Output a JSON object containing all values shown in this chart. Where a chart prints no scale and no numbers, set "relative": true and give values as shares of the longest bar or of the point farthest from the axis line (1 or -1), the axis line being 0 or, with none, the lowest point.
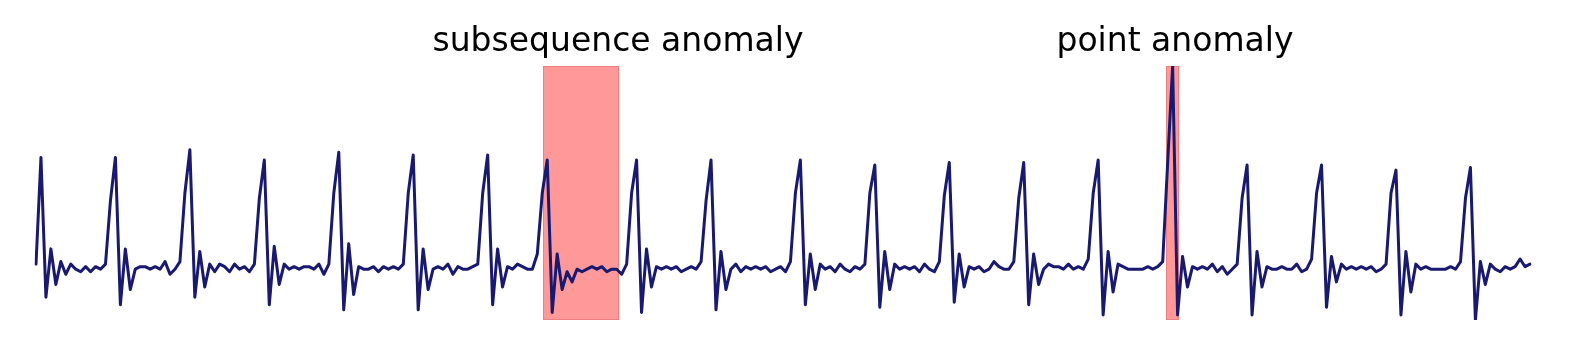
{
  "chart_data": {
    "type": "line",
    "relative": true,
    "legend": false,
    "marker": "none",
    "line_style": "solid",
    "annotations": [
      "subsequence anomaly",
      "point anomaly"
    ],
    "categories": [
      null,
      null,
      null,
      null,
      null,
      null,
      null,
      null,
      null,
      null,
      null,
      null,
      null,
      null,
      null,
      null,
      null,
      null,
      null,
      null,
      null,
      null,
      null,
      null,
      null,
      null,
      null,
      null,
      null,
      null,
      null,
      null,
      null,
      null,
      null,
      null,
      null,
      null,
      null,
      null,
      null,
      null,
      null,
      null,
      null,
      null,
      null,
      null,
      null,
      null,
      null,
      null,
      null,
      null,
      null,
      null,
      null,
      null,
      null,
      null,
      null,
      null,
      null,
      null,
      null,
      null,
      null,
      null,
      null,
      null,
      null,
      null,
      null,
      null,
      null,
      null,
      null,
      null,
      null,
      null,
      null,
      null,
      null,
      null,
      null,
      null,
      null,
      null,
      null,
      null,
      null,
      null,
      null,
      null,
      null,
      null,
      null,
      null,
      null,
      null,
      null,
      null,
      null,
      null,
      null,
      null,
      null,
      null,
      null,
      null,
      null,
      null,
      null,
      null,
      null,
      null,
      null,
      null,
      null,
      null,
      null,
      null,
      null,
      null,
      null,
      null,
      null,
      null,
      null,
      null,
      null,
      null,
      null,
      null,
      null,
      null,
      null,
      null,
      null,
      null,
      null,
      null,
      null,
      null,
      null,
      null,
      null,
      null,
      null,
      null,
      null,
      null,
      null,
      null,
      null,
      null,
      null,
      null,
      null,
      null,
      null,
      null,
      null,
      null,
      null,
      null,
      null,
      null,
      null,
      null,
      null,
      null,
      null,
      null,
      null,
      null,
      null,
      null,
      null,
      null,
      null,
      null,
      null,
      null,
      null,
      null,
      null,
      null,
      null,
      null,
      null,
      null,
      null,
      null,
      null,
      null,
      null,
      null,
      null,
      null,
      null,
      null,
      null,
      null,
      null,
      null,
      null,
      null,
      null,
      null,
      null,
      null,
      null,
      null,
      null,
      null,
      null,
      null,
      null,
      null,
      null,
      null,
      null,
      null,
      null,
      null,
      null,
      null,
      null,
      null,
      null,
      null,
      null,
      null,
      null,
      null,
      null,
      null,
      null,
      null,
      null,
      null,
      null,
      null,
      null,
      null,
      null,
      null,
      null,
      null,
      null,
      null,
      null,
      null,
      null,
      null,
      null,
      null,
      null,
      null,
      null,
      null,
      null,
      null,
      null,
      null,
      null,
      null,
      null,
      null,
      null,
      null,
      null,
      null,
      null,
      null,
      null,
      null,
      null,
      null,
      null,
      null,
      null,
      null,
      null,
      null,
      null,
      null,
      null,
      null,
      null,
      null,
      null,
      null,
      null,
      null,
      null,
      null,
      null,
      null,
      null,
      null
    ],
    "series": [
      {
        "color": "#191970",
        "values": [
          0.22,
          0.64,
          0.09,
          0.28,
          0.14,
          0.23,
          0.18,
          0.22,
          0.2,
          0.19,
          0.21,
          0.19,
          0.21,
          0.2,
          0.22,
          0.47,
          0.64,
          0.06,
          0.28,
          0.12,
          0.2,
          0.21,
          0.21,
          0.2,
          0.21,
          0.2,
          0.23,
          0.18,
          0.2,
          0.23,
          0.5,
          0.67,
          0.09,
          0.27,
          0.13,
          0.22,
          0.19,
          0.22,
          0.21,
          0.19,
          0.22,
          0.2,
          0.21,
          0.19,
          0.22,
          0.48,
          0.63,
          0.06,
          0.29,
          0.14,
          0.22,
          0.2,
          0.21,
          0.2,
          0.21,
          0.21,
          0.2,
          0.22,
          0.18,
          0.22,
          0.5,
          0.66,
          0.04,
          0.3,
          0.1,
          0.21,
          0.2,
          0.2,
          0.21,
          0.19,
          0.21,
          0.2,
          0.21,
          0.2,
          0.22,
          0.5,
          0.65,
          0.04,
          0.28,
          0.12,
          0.2,
          0.21,
          0.2,
          0.22,
          0.18,
          0.21,
          0.2,
          0.2,
          0.21,
          0.22,
          0.5,
          0.65,
          0.06,
          0.28,
          0.13,
          0.21,
          0.2,
          0.22,
          0.21,
          0.2,
          0.2,
          0.26,
          0.5,
          0.63,
          0.03,
          0.26,
          0.12,
          0.19,
          0.15,
          0.2,
          0.19,
          0.2,
          0.21,
          0.2,
          0.21,
          0.19,
          0.2,
          0.2,
          0.18,
          0.22,
          0.5,
          0.63,
          0.03,
          0.28,
          0.13,
          0.21,
          0.2,
          0.21,
          0.2,
          0.21,
          0.19,
          0.2,
          0.21,
          0.2,
          0.23,
          0.47,
          0.63,
          0.04,
          0.27,
          0.12,
          0.2,
          0.22,
          0.19,
          0.21,
          0.2,
          0.21,
          0.2,
          0.21,
          0.19,
          0.2,
          0.21,
          0.19,
          0.23,
          0.5,
          0.63,
          0.06,
          0.26,
          0.12,
          0.22,
          0.2,
          0.21,
          0.19,
          0.22,
          0.2,
          0.19,
          0.21,
          0.2,
          0.22,
          0.5,
          0.61,
          0.05,
          0.27,
          0.12,
          0.22,
          0.2,
          0.21,
          0.2,
          0.21,
          0.19,
          0.22,
          0.2,
          0.19,
          0.23,
          0.49,
          0.62,
          0.07,
          0.26,
          0.13,
          0.21,
          0.2,
          0.21,
          0.19,
          0.2,
          0.23,
          0.21,
          0.2,
          0.2,
          0.23,
          0.48,
          0.62,
          0.06,
          0.26,
          0.14,
          0.2,
          0.22,
          0.21,
          0.21,
          0.2,
          0.22,
          0.2,
          0.21,
          0.2,
          0.24,
          0.5,
          0.63,
          0.02,
          0.27,
          0.11,
          0.22,
          0.21,
          0.2,
          0.2,
          0.2,
          0.2,
          0.21,
          0.2,
          0.21,
          0.23,
          0.62,
          1.0,
          0.02,
          0.25,
          0.13,
          0.21,
          0.2,
          0.21,
          0.2,
          0.22,
          0.19,
          0.21,
          0.18,
          0.2,
          0.22,
          0.48,
          0.61,
          0.02,
          0.27,
          0.13,
          0.21,
          0.2,
          0.2,
          0.21,
          0.2,
          0.2,
          0.22,
          0.19,
          0.2,
          0.24,
          0.5,
          0.61,
          0.05,
          0.25,
          0.15,
          0.22,
          0.2,
          0.21,
          0.2,
          0.21,
          0.2,
          0.21,
          0.19,
          0.2,
          0.22,
          0.5,
          0.59,
          0.02,
          0.27,
          0.11,
          0.22,
          0.2,
          0.21,
          0.2,
          0.2,
          0.2,
          0.2,
          0.21,
          0.2,
          0.23,
          0.48,
          0.6,
          0.0,
          0.23,
          0.14,
          0.22,
          0.2,
          0.19,
          0.21,
          0.2,
          0.21,
          0.24,
          0.21,
          0.22
        ]
      }
    ]
  }
}
